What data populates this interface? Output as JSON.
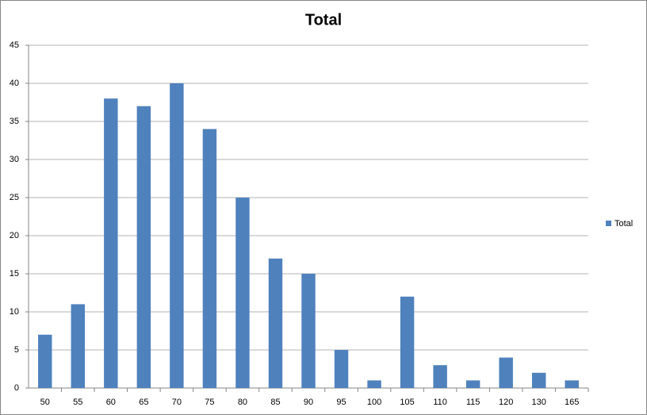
{
  "chart_data": {
    "type": "bar",
    "title": "Total",
    "categories": [
      "50",
      "55",
      "60",
      "65",
      "70",
      "75",
      "80",
      "85",
      "90",
      "95",
      "100",
      "105",
      "110",
      "115",
      "120",
      "130",
      "165"
    ],
    "series": [
      {
        "name": "Total",
        "color": "#4f81bd",
        "values": [
          7,
          11,
          38,
          37,
          40,
          34,
          25,
          17,
          15,
          5,
          1,
          12,
          3,
          1,
          4,
          2,
          1
        ]
      }
    ],
    "ylim": [
      0,
      45
    ],
    "yticks": [
      0,
      5,
      10,
      15,
      20,
      25,
      30,
      35,
      40,
      45
    ],
    "grid": true,
    "legend": "right"
  }
}
